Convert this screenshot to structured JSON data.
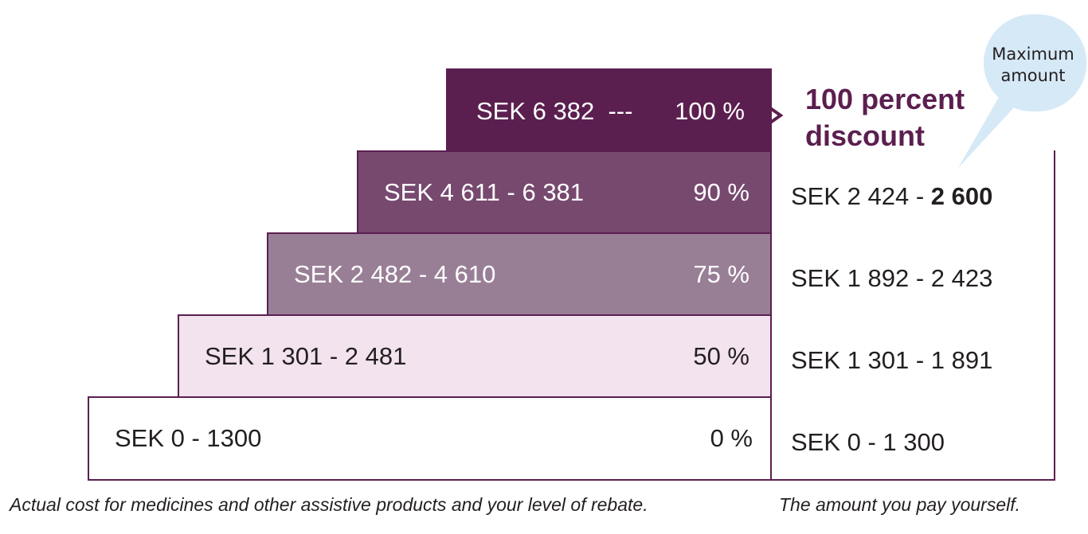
{
  "tiers": [
    {
      "range": "SEK 6 382  ---",
      "percent": "100 %"
    },
    {
      "range": "SEK 4 611 - 6 381",
      "percent": "90 %"
    },
    {
      "range": "SEK 2 482 - 4 610",
      "percent": "75 %"
    },
    {
      "range": "SEK 1 301 - 2 481",
      "percent": "50 %"
    },
    {
      "range": "SEK 0 - 1300",
      "percent": "0 %"
    }
  ],
  "pay_yourself": [
    {
      "text": "SEK 2 424 - ",
      "bold": "2 600"
    },
    {
      "text": "SEK 1 892 - 2 423"
    },
    {
      "text": "SEK 1 301 - 1 891"
    },
    {
      "text": "SEK 0 - 1 300"
    }
  ],
  "discount_label": {
    "line1": "100 percent",
    "line2": "discount"
  },
  "bubble": {
    "line1": "Maximum",
    "line2": "amount"
  },
  "captions": {
    "left": "Actual cost for medicines and other assistive products and your level of rebate.",
    "right": "The amount you pay yourself."
  },
  "colors": {
    "tier_100": "#5b1f4f",
    "tier_90": "#77496f",
    "tier_75": "#997f96",
    "tier_50": "#f2e3ef",
    "tier_0": "#ffffff",
    "accent_text": "#5b1f4f",
    "bubble": "#d6e9f7"
  },
  "icons": {
    "arrow": "chevron-right-icon",
    "bubble": "speech-bubble-icon"
  }
}
